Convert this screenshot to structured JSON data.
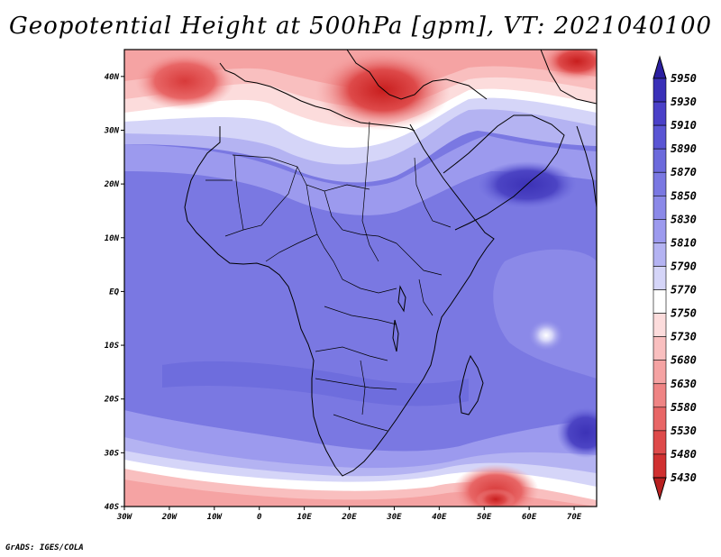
{
  "title": "Geopotential Height at 500hPa [gpm], VT: 2021040100",
  "credit": "GrADS: IGES/COLA",
  "axes": {
    "lon_labels": [
      "30W",
      "20W",
      "10W",
      "0",
      "10E",
      "20E",
      "30E",
      "40E",
      "50E",
      "60E",
      "70E"
    ],
    "lat_labels": [
      "40N",
      "30N",
      "20N",
      "10N",
      "EQ",
      "10S",
      "20S",
      "30S",
      "40S"
    ]
  },
  "chart_data": {
    "type": "heatmap",
    "title": "Geopotential Height at 500hPa [gpm], VT: 2021040100",
    "variable": "Geopotential Height",
    "level": "500hPa",
    "units": "gpm",
    "valid_time": "2021040100",
    "lon_range": [
      -30,
      75
    ],
    "lat_range": [
      -40,
      45
    ],
    "colorbar": {
      "levels": [
        5950,
        5930,
        5910,
        5890,
        5870,
        5850,
        5830,
        5810,
        5790,
        5770,
        5750,
        5730,
        5680,
        5630,
        5580,
        5530,
        5480,
        5430
      ],
      "colors": [
        "#2b1fa0",
        "#3a30b8",
        "#4a40c8",
        "#5a55d4",
        "#6c6adc",
        "#7a78e2",
        "#8b89e8",
        "#9c9aee",
        "#b4b3f2",
        "#d5d5f8",
        "#ffffff",
        "#fcdcdc",
        "#f9bfbf",
        "#f5a3a3",
        "#ef8484",
        "#e86666",
        "#de4a4a",
        "#d03030",
        "#b82020"
      ]
    }
  }
}
